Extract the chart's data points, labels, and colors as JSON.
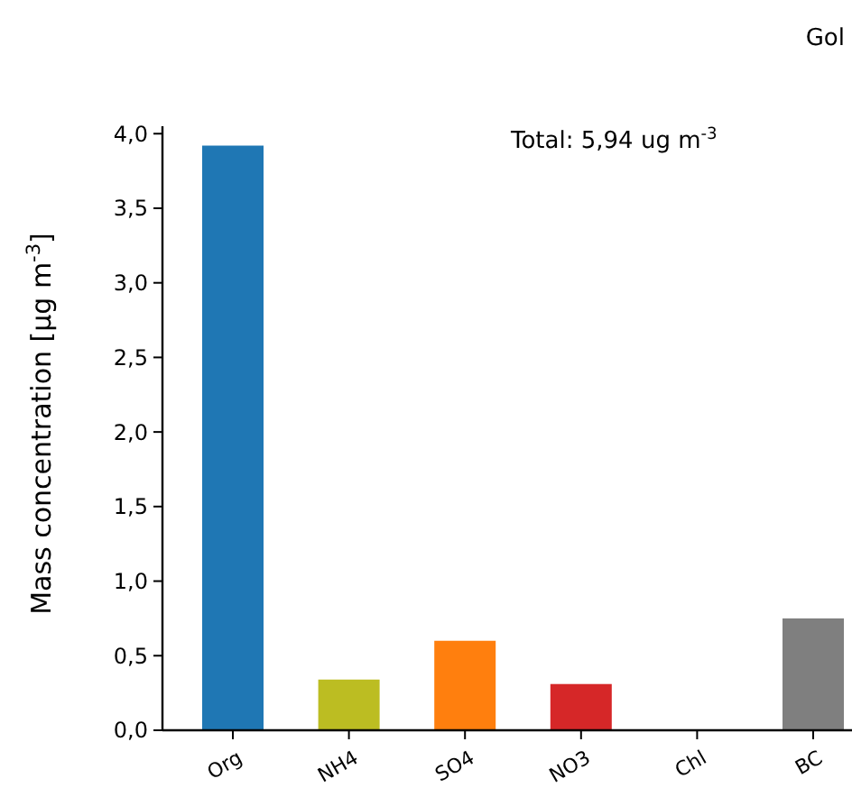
{
  "chart_data": {
    "type": "bar",
    "title": "Gol",
    "ylabel": "Mass concentration [μg m$^{-3}$]",
    "annotations": [
      "Total: 5,94 ug m$^{-3}$"
    ],
    "categories": [
      "Org",
      "NH4",
      "SO4",
      "NO3",
      "Chl",
      "BC"
    ],
    "values": [
      3.92,
      0.34,
      0.6,
      0.31,
      0,
      0.75
    ],
    "colors": [
      "#1f77b4",
      "#bcbd22",
      "#ff7f0e",
      "#d62728",
      "#e377c2",
      "#7f7f7f"
    ],
    "ylim": [
      0,
      4.05
    ],
    "yticks": [
      {
        "value": 0,
        "label": "0,0"
      },
      {
        "value": 0.5,
        "label": "0,5"
      },
      {
        "value": 1,
        "label": "1,0"
      },
      {
        "value": 1.5,
        "label": "1,5"
      },
      {
        "value": 2,
        "label": "2,0"
      },
      {
        "value": 2.5,
        "label": "2,5"
      },
      {
        "value": 3,
        "label": "3,0"
      },
      {
        "value": 3.5,
        "label": "3,5"
      },
      {
        "value": 4,
        "label": "4,0"
      }
    ],
    "grid": false
  }
}
